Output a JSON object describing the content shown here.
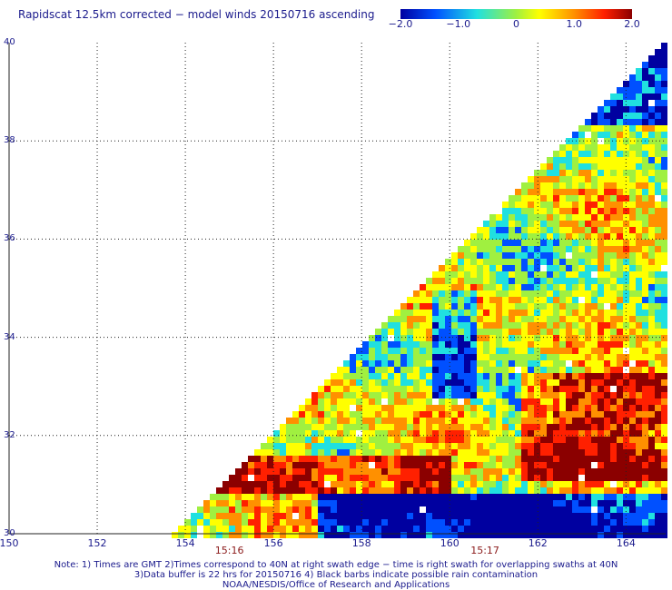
{
  "title": "Rapidscat 12.5km corrected − model winds 20150716 ascending",
  "colorbar": {
    "labels": [
      "−2.0",
      "−1.0",
      "0",
      "1.0",
      "2.0"
    ],
    "values": [
      -2.0,
      -1.0,
      0,
      1.0,
      2.0
    ],
    "colors": [
      "#0000a0",
      "#0050ff",
      "#20e0e0",
      "#a0f040",
      "#ffff00",
      "#ff9000",
      "#ff2000",
      "#8b0000"
    ]
  },
  "axes": {
    "lon_ticks": [
      "150",
      "152",
      "154",
      "156",
      "158",
      "160",
      "162",
      "164"
    ],
    "lon_values": [
      150,
      152,
      154,
      156,
      158,
      160,
      162,
      164
    ],
    "lat_ticks": [
      "30",
      "32",
      "34",
      "36",
      "38",
      "40"
    ],
    "lat_values": [
      30,
      32,
      34,
      36,
      38,
      40
    ],
    "lon_range": [
      150,
      164.9
    ],
    "lat_range": [
      30,
      40
    ],
    "grid": "dotted"
  },
  "times": [
    {
      "label": "15:16",
      "lon": 155
    },
    {
      "label": "15:17",
      "lon": 160.8
    }
  ],
  "notes": [
    "Note: 1) Times are GMT 2)Times correspond to 40N at right swath edge − time is right swath for overlapping swaths at 40N",
    "3)Data buffer is 22 hrs for 20150716 4) Black barbs indicate possible rain contamination",
    "NOAA/NESDIS/Office of Research and Applications"
  ]
}
